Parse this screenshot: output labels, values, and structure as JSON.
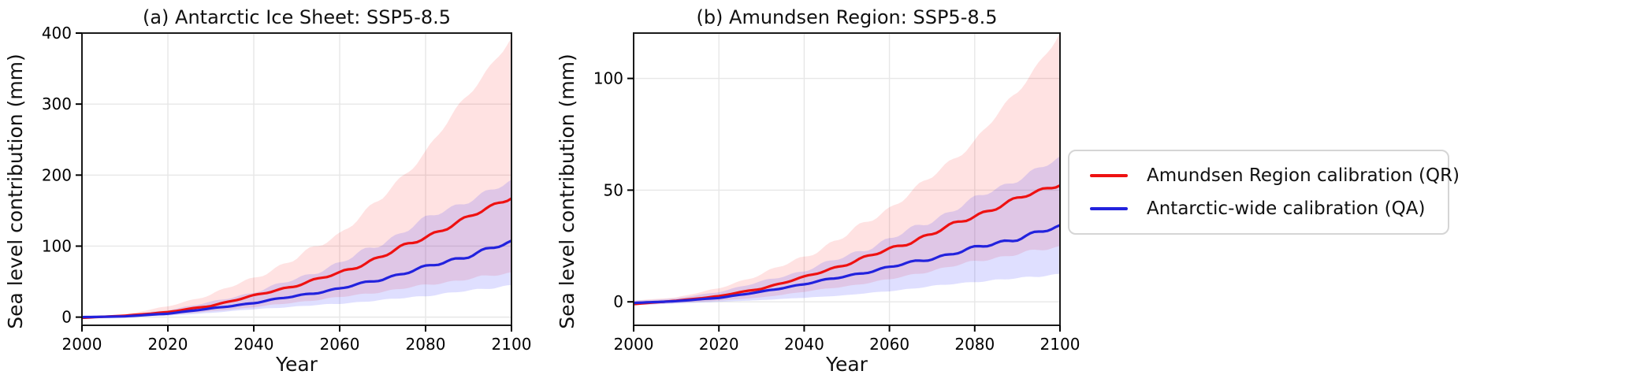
{
  "figure": {
    "background": "#ffffff",
    "grid_color": "#e7e7e7",
    "spine_color": "#1a1a1a",
    "tick_color": "#000000"
  },
  "legend": {
    "entries": [
      {
        "label": "Amundsen Region calibration (QR)",
        "color": "#ee1111"
      },
      {
        "label": "Antarctic-wide calibration (QA)",
        "color": "#2222dd"
      }
    ]
  },
  "chart_data": [
    {
      "type": "line",
      "title": "(a) Antarctic Ice Sheet: SSP5-8.5",
      "xlabel": "Year",
      "ylabel": "Sea level contribution (mm)",
      "xlim": [
        2000,
        2100
      ],
      "ylim": [
        -11.5,
        400
      ],
      "xticks": [
        2000,
        2020,
        2040,
        2060,
        2080,
        2100
      ],
      "yticks": [
        0,
        100,
        200,
        300,
        400
      ],
      "grid": true,
      "legend_position": "outside-right",
      "x": [
        2000,
        2010,
        2020,
        2030,
        2040,
        2050,
        2060,
        2070,
        2080,
        2090,
        2100
      ],
      "series": [
        {
          "name": "Amundsen Region calibration (QR)",
          "color": "#ee1111",
          "band_color": "rgba(255,0,0,0.115)",
          "values": [
            -1,
            2,
            7,
            16,
            30,
            45,
            62,
            86,
            113,
            140,
            170
          ],
          "band_upper": [
            1,
            4,
            15,
            32,
            55,
            83,
            118,
            168,
            233,
            314,
            393
          ],
          "band_lower": [
            -2,
            0,
            3,
            8,
            14,
            21,
            28,
            36,
            45,
            54,
            62
          ]
        },
        {
          "name": "Antarctic-wide calibration (QA)",
          "color": "#2222dd",
          "band_color": "rgba(40,40,255,0.15)",
          "values": [
            0,
            1,
            5,
            12,
            20,
            30,
            40,
            54,
            70,
            87,
            105
          ],
          "band_upper": [
            1,
            3,
            10,
            21,
            35,
            54,
            76,
            105,
            138,
            165,
            190
          ],
          "band_lower": [
            -1.5,
            0,
            2,
            6,
            11,
            15,
            19,
            24,
            30,
            37,
            45
          ]
        }
      ]
    },
    {
      "type": "line",
      "title": "(b) Amundsen Region: SSP5-8.5",
      "xlabel": "Year",
      "ylabel": "Sea level contribution (mm)",
      "xlim": [
        2000,
        2100
      ],
      "ylim": [
        -10.5,
        120.3
      ],
      "xticks": [
        2000,
        2020,
        2040,
        2060,
        2080,
        2100
      ],
      "yticks": [
        0,
        50,
        100
      ],
      "grid": true,
      "x": [
        2000,
        2010,
        2020,
        2030,
        2040,
        2050,
        2060,
        2070,
        2080,
        2090,
        2100
      ],
      "series": [
        {
          "name": "Amundsen Region calibration (QR)",
          "color": "#ee1111",
          "band_color": "rgba(255,0,0,0.115)",
          "values": [
            -1,
            0.5,
            2.5,
            6,
            11,
            17,
            23.5,
            30.5,
            38.5,
            46,
            53
          ],
          "band_upper": [
            0.5,
            2,
            6,
            12.5,
            20,
            30,
            42,
            56,
            72,
            94,
            120
          ],
          "band_lower": [
            -1.5,
            -0.5,
            0.5,
            2,
            4.5,
            7,
            10,
            14,
            18,
            21.5,
            24.5
          ]
        },
        {
          "name": "Antarctic-wide calibration (QA)",
          "color": "#2222dd",
          "band_color": "rgba(40,40,255,0.15)",
          "values": [
            -0.5,
            0.3,
            1.8,
            4.5,
            8,
            11.5,
            15.5,
            19.5,
            24,
            28.5,
            33.5
          ],
          "band_upper": [
            0.5,
            1.5,
            4.5,
            9,
            14,
            20.5,
            28,
            36.5,
            46,
            55,
            64
          ],
          "band_lower": [
            -1.5,
            -0.8,
            0,
            0.8,
            1.8,
            3,
            4.8,
            7,
            9,
            10.5,
            12.5
          ]
        }
      ]
    }
  ]
}
